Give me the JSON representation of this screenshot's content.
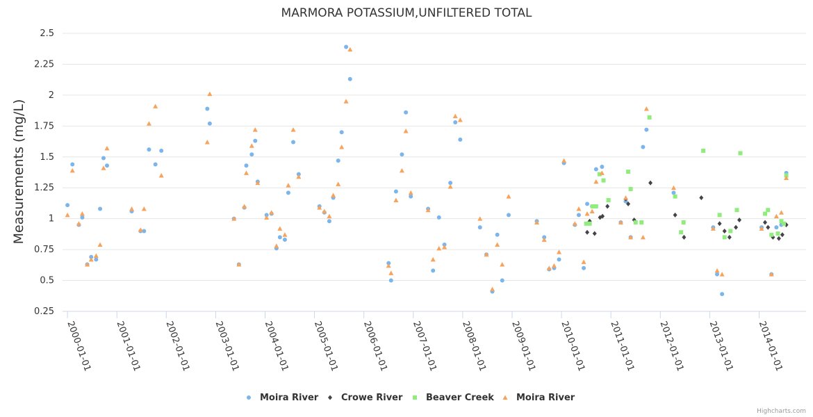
{
  "chart_data": {
    "type": "scatter",
    "title": "MARMORA POTASSIUM,UNFILTERED TOTAL",
    "xlabel": "",
    "ylabel": "Measurements (mg/L)",
    "ylim": [
      0.25,
      2.5
    ],
    "yticks": [
      "0.25",
      "0.5",
      "0.75",
      "1",
      "1.25",
      "1.5",
      "1.75",
      "2",
      "2.25",
      "2.5"
    ],
    "xlim": [
      1999.9,
      2014.95
    ],
    "xticks": [
      {
        "label": "2000-01-01",
        "value": 2000.0
      },
      {
        "label": "2001-01-01",
        "value": 2001.0
      },
      {
        "label": "2002-01-01",
        "value": 2002.0
      },
      {
        "label": "2003-01-01",
        "value": 2003.0
      },
      {
        "label": "2004-01-01",
        "value": 2004.0
      },
      {
        "label": "2005-01-01",
        "value": 2005.0
      },
      {
        "label": "2006-01-01",
        "value": 2006.0
      },
      {
        "label": "2007-01-01",
        "value": 2007.0
      },
      {
        "label": "2008-01-01",
        "value": 2008.0
      },
      {
        "label": "2009-01-01",
        "value": 2009.0
      },
      {
        "label": "2010-01-01",
        "value": 2010.0
      },
      {
        "label": "2011-01-01",
        "value": 2011.0
      },
      {
        "label": "2012-01-01",
        "value": 2012.0
      },
      {
        "label": "2013-01-01",
        "value": 2013.0
      },
      {
        "label": "2014-01-01",
        "value": 2014.0
      }
    ],
    "series": [
      {
        "name": "Moira River",
        "color": "#7cb5ec",
        "symbol": "circle",
        "points": [
          [
            2000.0,
            1.11
          ],
          [
            2000.1,
            1.44
          ],
          [
            2000.23,
            0.95
          ],
          [
            2000.3,
            1.01
          ],
          [
            2000.4,
            0.63
          ],
          [
            2000.48,
            0.69
          ],
          [
            2000.58,
            0.67
          ],
          [
            2000.66,
            1.08
          ],
          [
            2000.73,
            1.49
          ],
          [
            2000.8,
            1.43
          ],
          [
            2001.3,
            1.06
          ],
          [
            2001.48,
            0.9
          ],
          [
            2001.55,
            0.9
          ],
          [
            2001.65,
            1.56
          ],
          [
            2001.78,
            1.44
          ],
          [
            2001.9,
            1.55
          ],
          [
            2002.83,
            1.89
          ],
          [
            2002.88,
            1.77
          ],
          [
            2003.37,
            1.0
          ],
          [
            2003.47,
            0.63
          ],
          [
            2003.58,
            1.09
          ],
          [
            2003.62,
            1.43
          ],
          [
            2003.73,
            1.52
          ],
          [
            2003.8,
            1.63
          ],
          [
            2003.85,
            1.3
          ],
          [
            2004.03,
            1.03
          ],
          [
            2004.13,
            1.04
          ],
          [
            2004.23,
            0.76
          ],
          [
            2004.3,
            0.85
          ],
          [
            2004.4,
            0.83
          ],
          [
            2004.47,
            1.21
          ],
          [
            2004.57,
            1.62
          ],
          [
            2004.68,
            1.36
          ],
          [
            2005.1,
            1.1
          ],
          [
            2005.2,
            1.05
          ],
          [
            2005.3,
            0.98
          ],
          [
            2005.38,
            1.17
          ],
          [
            2005.48,
            1.47
          ],
          [
            2005.55,
            1.7
          ],
          [
            2005.64,
            2.39
          ],
          [
            2005.72,
            2.13
          ],
          [
            2006.5,
            0.64
          ],
          [
            2006.55,
            0.5
          ],
          [
            2006.65,
            1.22
          ],
          [
            2006.77,
            1.52
          ],
          [
            2006.85,
            1.86
          ],
          [
            2006.95,
            1.18
          ],
          [
            2007.3,
            1.08
          ],
          [
            2007.4,
            0.58
          ],
          [
            2007.52,
            1.01
          ],
          [
            2007.63,
            0.79
          ],
          [
            2007.75,
            1.29
          ],
          [
            2007.85,
            1.78
          ],
          [
            2007.95,
            1.64
          ],
          [
            2008.35,
            0.93
          ],
          [
            2008.48,
            0.71
          ],
          [
            2008.6,
            0.41
          ],
          [
            2008.7,
            0.87
          ],
          [
            2008.8,
            0.5
          ],
          [
            2008.93,
            1.03
          ],
          [
            2009.5,
            0.98
          ],
          [
            2009.65,
            0.85
          ],
          [
            2009.75,
            0.59
          ],
          [
            2009.85,
            0.6
          ],
          [
            2009.95,
            0.67
          ],
          [
            2010.05,
            1.45
          ],
          [
            2010.27,
            0.95
          ],
          [
            2010.35,
            1.03
          ],
          [
            2010.45,
            0.6
          ],
          [
            2010.52,
            1.12
          ],
          [
            2010.62,
            1.1
          ],
          [
            2010.7,
            1.4
          ],
          [
            2010.82,
            1.42
          ],
          [
            2011.2,
            0.97
          ],
          [
            2011.3,
            1.14
          ],
          [
            2011.4,
            0.85
          ],
          [
            2011.65,
            1.58
          ],
          [
            2011.72,
            1.72
          ],
          [
            2012.27,
            1.21
          ],
          [
            2013.07,
            0.93
          ],
          [
            2013.15,
            0.55
          ],
          [
            2013.25,
            0.39
          ],
          [
            2014.05,
            0.93
          ],
          [
            2014.25,
            0.55
          ],
          [
            2014.35,
            0.93
          ],
          [
            2014.45,
            0.95
          ],
          [
            2014.55,
            1.37
          ]
        ]
      },
      {
        "name": "Crowe River",
        "color": "#434348",
        "symbol": "diamond",
        "points": [
          [
            2010.52,
            0.89
          ],
          [
            2010.57,
            0.98
          ],
          [
            2010.67,
            0.88
          ],
          [
            2010.78,
            1.01
          ],
          [
            2010.83,
            1.02
          ],
          [
            2010.93,
            1.1
          ],
          [
            2011.3,
            1.16
          ],
          [
            2011.35,
            1.12
          ],
          [
            2011.47,
            0.99
          ],
          [
            2011.8,
            1.29
          ],
          [
            2012.3,
            1.03
          ],
          [
            2012.48,
            0.85
          ],
          [
            2012.83,
            1.17
          ],
          [
            2013.2,
            0.96
          ],
          [
            2013.3,
            0.9
          ],
          [
            2013.4,
            0.85
          ],
          [
            2013.53,
            0.93
          ],
          [
            2013.6,
            0.99
          ],
          [
            2014.12,
            0.97
          ],
          [
            2014.18,
            0.93
          ],
          [
            2014.28,
            0.85
          ],
          [
            2014.4,
            0.84
          ],
          [
            2014.47,
            0.87
          ],
          [
            2014.55,
            0.95
          ]
        ]
      },
      {
        "name": "Beaver Creek",
        "color": "#90ed7d",
        "symbol": "square",
        "points": [
          [
            2010.5,
            0.96
          ],
          [
            2010.57,
            0.96
          ],
          [
            2010.63,
            1.1
          ],
          [
            2010.7,
            1.1
          ],
          [
            2010.77,
            1.36
          ],
          [
            2010.85,
            1.31
          ],
          [
            2010.95,
            1.15
          ],
          [
            2011.35,
            1.38
          ],
          [
            2011.4,
            1.24
          ],
          [
            2011.5,
            0.97
          ],
          [
            2011.62,
            0.97
          ],
          [
            2011.78,
            1.82
          ],
          [
            2012.3,
            1.18
          ],
          [
            2012.42,
            0.89
          ],
          [
            2012.47,
            0.97
          ],
          [
            2012.87,
            1.55
          ],
          [
            2013.2,
            1.03
          ],
          [
            2013.3,
            0.85
          ],
          [
            2013.42,
            0.9
          ],
          [
            2013.55,
            1.07
          ],
          [
            2013.62,
            1.53
          ],
          [
            2014.12,
            1.04
          ],
          [
            2014.18,
            1.07
          ],
          [
            2014.25,
            0.87
          ],
          [
            2014.38,
            0.88
          ],
          [
            2014.45,
            0.98
          ],
          [
            2014.5,
            0.96
          ],
          [
            2014.55,
            1.35
          ]
        ]
      },
      {
        "name": "Moira River",
        "color": "#f7a35c",
        "symbol": "triangle",
        "points": [
          [
            2000.0,
            1.03
          ],
          [
            2000.1,
            1.39
          ],
          [
            2000.23,
            0.96
          ],
          [
            2000.3,
            1.04
          ],
          [
            2000.4,
            0.63
          ],
          [
            2000.48,
            0.67
          ],
          [
            2000.58,
            0.7
          ],
          [
            2000.66,
            0.79
          ],
          [
            2000.73,
            1.41
          ],
          [
            2000.8,
            1.57
          ],
          [
            2001.3,
            1.08
          ],
          [
            2001.48,
            0.91
          ],
          [
            2001.55,
            1.08
          ],
          [
            2001.65,
            1.77
          ],
          [
            2001.78,
            1.91
          ],
          [
            2001.9,
            1.35
          ],
          [
            2002.83,
            1.62
          ],
          [
            2002.88,
            2.01
          ],
          [
            2003.37,
            1.0
          ],
          [
            2003.47,
            0.63
          ],
          [
            2003.58,
            1.1
          ],
          [
            2003.62,
            1.37
          ],
          [
            2003.73,
            1.59
          ],
          [
            2003.8,
            1.72
          ],
          [
            2003.85,
            1.29
          ],
          [
            2004.03,
            1.01
          ],
          [
            2004.13,
            1.05
          ],
          [
            2004.23,
            0.78
          ],
          [
            2004.3,
            0.92
          ],
          [
            2004.4,
            0.87
          ],
          [
            2004.47,
            1.27
          ],
          [
            2004.57,
            1.72
          ],
          [
            2004.68,
            1.34
          ],
          [
            2005.1,
            1.09
          ],
          [
            2005.2,
            1.06
          ],
          [
            2005.3,
            1.02
          ],
          [
            2005.38,
            1.19
          ],
          [
            2005.48,
            1.28
          ],
          [
            2005.55,
            1.58
          ],
          [
            2005.64,
            1.95
          ],
          [
            2005.72,
            2.37
          ],
          [
            2006.5,
            0.62
          ],
          [
            2006.55,
            0.56
          ],
          [
            2006.65,
            1.15
          ],
          [
            2006.77,
            1.39
          ],
          [
            2006.85,
            1.71
          ],
          [
            2006.95,
            1.21
          ],
          [
            2007.3,
            1.07
          ],
          [
            2007.4,
            0.67
          ],
          [
            2007.52,
            0.76
          ],
          [
            2007.63,
            0.77
          ],
          [
            2007.75,
            1.26
          ],
          [
            2007.85,
            1.83
          ],
          [
            2007.95,
            1.8
          ],
          [
            2008.35,
            1.0
          ],
          [
            2008.48,
            0.71
          ],
          [
            2008.6,
            0.43
          ],
          [
            2008.7,
            0.79
          ],
          [
            2008.8,
            0.63
          ],
          [
            2008.93,
            1.18
          ],
          [
            2009.5,
            0.97
          ],
          [
            2009.65,
            0.83
          ],
          [
            2009.75,
            0.6
          ],
          [
            2009.85,
            0.62
          ],
          [
            2009.95,
            0.73
          ],
          [
            2010.05,
            1.47
          ],
          [
            2010.27,
            0.96
          ],
          [
            2010.35,
            1.08
          ],
          [
            2010.45,
            0.65
          ],
          [
            2010.52,
            1.04
          ],
          [
            2010.62,
            1.06
          ],
          [
            2010.7,
            1.3
          ],
          [
            2010.82,
            1.37
          ],
          [
            2011.2,
            0.97
          ],
          [
            2011.3,
            1.17
          ],
          [
            2011.4,
            0.85
          ],
          [
            2011.65,
            0.85
          ],
          [
            2011.72,
            1.89
          ],
          [
            2012.27,
            1.25
          ],
          [
            2013.07,
            0.92
          ],
          [
            2013.15,
            0.58
          ],
          [
            2013.25,
            0.55
          ],
          [
            2014.05,
            0.92
          ],
          [
            2014.25,
            0.55
          ],
          [
            2014.35,
            1.02
          ],
          [
            2014.45,
            1.05
          ],
          [
            2014.55,
            1.33
          ]
        ]
      }
    ]
  },
  "credits": "Highcharts.com"
}
